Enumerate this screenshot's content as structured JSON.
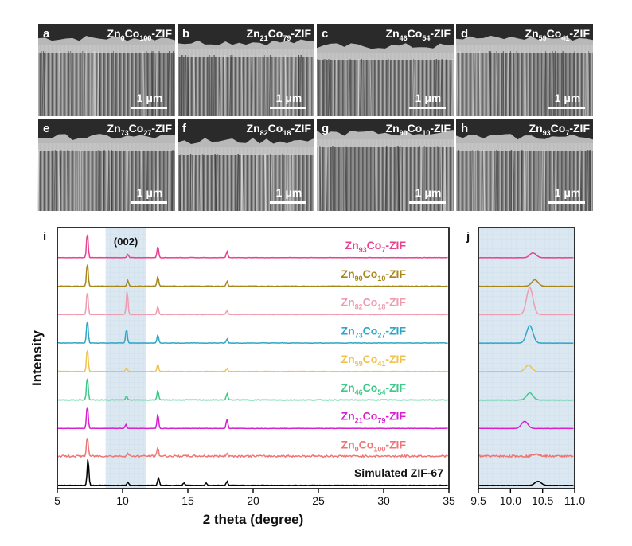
{
  "colors": {
    "pink": "#e8418f",
    "olive": "#a8871a",
    "lightpink": "#ef9bb0",
    "teal": "#2ea6c8",
    "yellow": "#f0c24f",
    "green": "#3ec98a",
    "magenta": "#d81ecf",
    "salmon": "#ef7575",
    "black": "#000000",
    "highlight": "#dbe8f2"
  },
  "sem_panels": [
    {
      "letter": "a",
      "label_prefix": "Zn",
      "zn": "0",
      "co": "100",
      "scale": "1 μm"
    },
    {
      "letter": "b",
      "label_prefix": "Zn",
      "zn": "21",
      "co": "79",
      "scale": "1 μm"
    },
    {
      "letter": "c",
      "label_prefix": "Zn",
      "zn": "46",
      "co": "54",
      "scale": "1 μm"
    },
    {
      "letter": "d",
      "label_prefix": "Zn",
      "zn": "59",
      "co": "41",
      "scale": "1 μm"
    },
    {
      "letter": "e",
      "label_prefix": "Zn",
      "zn": "73",
      "co": "27",
      "scale": "1 μm"
    },
    {
      "letter": "f",
      "label_prefix": "Zn",
      "zn": "82",
      "co": "18",
      "scale": "1 μm"
    },
    {
      "letter": "g",
      "label_prefix": "Zn",
      "zn": "90",
      "co": "10",
      "scale": "1 μm"
    },
    {
      "letter": "h",
      "label_prefix": "Zn",
      "zn": "93",
      "co": "7",
      "scale": "1 μm"
    }
  ],
  "chart_data": [
    {
      "type": "line",
      "panel_letter": "i",
      "xlabel": "2 theta (degree)",
      "ylabel": "Intensity",
      "xlim": [
        5,
        35
      ],
      "xticks": [
        "5",
        "10",
        "15",
        "20",
        "25",
        "30",
        "35"
      ],
      "highlight_range": [
        8.7,
        11.8
      ],
      "highlight_label": "(002)",
      "series": [
        {
          "name": "Zn93Co7-ZIF",
          "zn": "93",
          "co": "7",
          "color": "#e8418f",
          "peaks": [
            [
              7.3,
              32
            ],
            [
              10.4,
              4
            ],
            [
              12.7,
              14
            ],
            [
              18.0,
              8
            ]
          ]
        },
        {
          "name": "Zn90Co10-ZIF",
          "zn": "90",
          "co": "10",
          "color": "#a8871a",
          "peaks": [
            [
              7.3,
              30
            ],
            [
              10.4,
              7
            ],
            [
              12.7,
              12
            ],
            [
              18.0,
              6
            ]
          ]
        },
        {
          "name": "Zn82Co18-ZIF",
          "zn": "82",
          "co": "18",
          "color": "#ef9bb0",
          "peaks": [
            [
              7.3,
              30
            ],
            [
              10.35,
              30
            ],
            [
              12.7,
              10
            ],
            [
              18.0,
              5
            ]
          ]
        },
        {
          "name": "Zn73Co27-ZIF",
          "zn": "73",
          "co": "27",
          "color": "#2ea6c8",
          "peaks": [
            [
              7.3,
              30
            ],
            [
              10.3,
              18
            ],
            [
              12.7,
              10
            ],
            [
              18.0,
              5
            ]
          ]
        },
        {
          "name": "Zn59Co41-ZIF",
          "zn": "59",
          "co": "41",
          "color": "#f0c24f",
          "peaks": [
            [
              7.3,
              30
            ],
            [
              10.3,
              5
            ],
            [
              12.7,
              9
            ],
            [
              18.0,
              4
            ]
          ]
        },
        {
          "name": "Zn46Co54-ZIF",
          "zn": "46",
          "co": "54",
          "color": "#3ec98a",
          "peaks": [
            [
              7.3,
              30
            ],
            [
              10.3,
              5
            ],
            [
              12.7,
              12
            ],
            [
              18.0,
              8
            ]
          ]
        },
        {
          "name": "Zn21Co79-ZIF",
          "zn": "21",
          "co": "79",
          "color": "#d81ecf",
          "peaks": [
            [
              7.3,
              30
            ],
            [
              10.25,
              5
            ],
            [
              12.7,
              18
            ],
            [
              18.0,
              12
            ]
          ]
        },
        {
          "name": "Zn0Co100-ZIF",
          "zn": "0",
          "co": "100",
          "color": "#ef7575",
          "peaks": [
            [
              7.3,
              26
            ],
            [
              10.4,
              3
            ],
            [
              12.7,
              10
            ],
            [
              18.0,
              4
            ]
          ]
        },
        {
          "name": "Simulated ZIF-67",
          "zn": "",
          "co": "",
          "color": "#000000",
          "peaks": [
            [
              7.35,
              34
            ],
            [
              10.4,
              4
            ],
            [
              12.75,
              10
            ],
            [
              14.7,
              3
            ],
            [
              16.4,
              3
            ],
            [
              18.0,
              5
            ]
          ]
        }
      ]
    },
    {
      "type": "line",
      "panel_letter": "j",
      "xlim": [
        9.5,
        11.0
      ],
      "xticks": [
        "9.5",
        "10.0",
        "10.5",
        "11.0"
      ],
      "series": [
        {
          "color": "#e8418f",
          "peak": [
            10.35,
            6
          ]
        },
        {
          "color": "#a8871a",
          "peak": [
            10.38,
            8
          ]
        },
        {
          "color": "#ef9bb0",
          "peak": [
            10.3,
            34
          ]
        },
        {
          "color": "#2ea6c8",
          "peak": [
            10.3,
            22
          ]
        },
        {
          "color": "#f0c24f",
          "peak": [
            10.28,
            8
          ]
        },
        {
          "color": "#3ec98a",
          "peak": [
            10.3,
            9
          ]
        },
        {
          "color": "#d81ecf",
          "peak": [
            10.22,
            9
          ]
        },
        {
          "color": "#ef7575",
          "peak": [
            10.4,
            3
          ]
        },
        {
          "color": "#000000",
          "peak": [
            10.43,
            5
          ]
        }
      ]
    }
  ]
}
